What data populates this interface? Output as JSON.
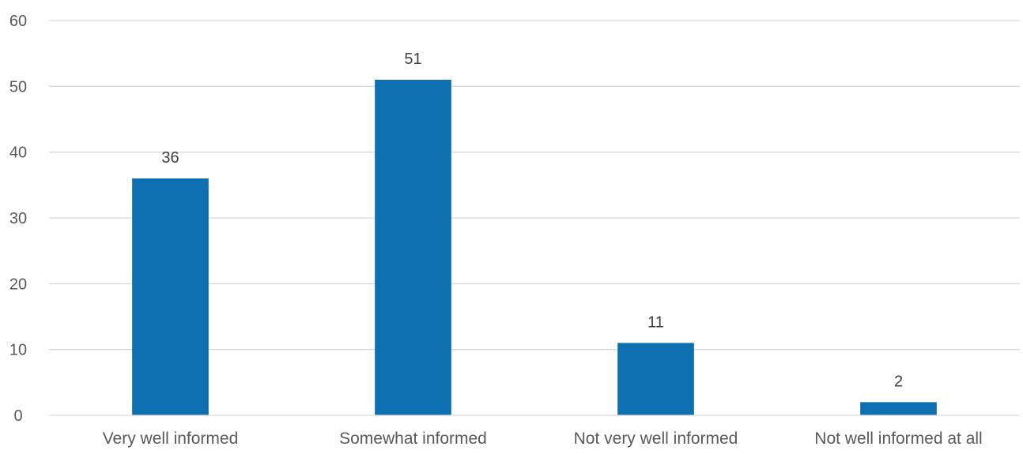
{
  "chart_data": {
    "type": "bar",
    "categories": [
      "Very well informed",
      "Somewhat informed",
      "Not very well informed",
      "Not well informed at all"
    ],
    "values": [
      36,
      51,
      11,
      2
    ],
    "data_labels": [
      "36",
      "51",
      "11",
      "2"
    ],
    "title": "",
    "xlabel": "",
    "ylabel": "",
    "ylim": [
      0,
      60
    ],
    "yticks": [
      0,
      10,
      20,
      30,
      40,
      50,
      60
    ],
    "ytick_labels": [
      "0",
      "10",
      "20",
      "30",
      "40",
      "50",
      "60"
    ],
    "grid": true,
    "legend": "none",
    "bar_color": "#0f70b1",
    "grid_color": "#d9d9d9",
    "label_color": "#595959"
  }
}
